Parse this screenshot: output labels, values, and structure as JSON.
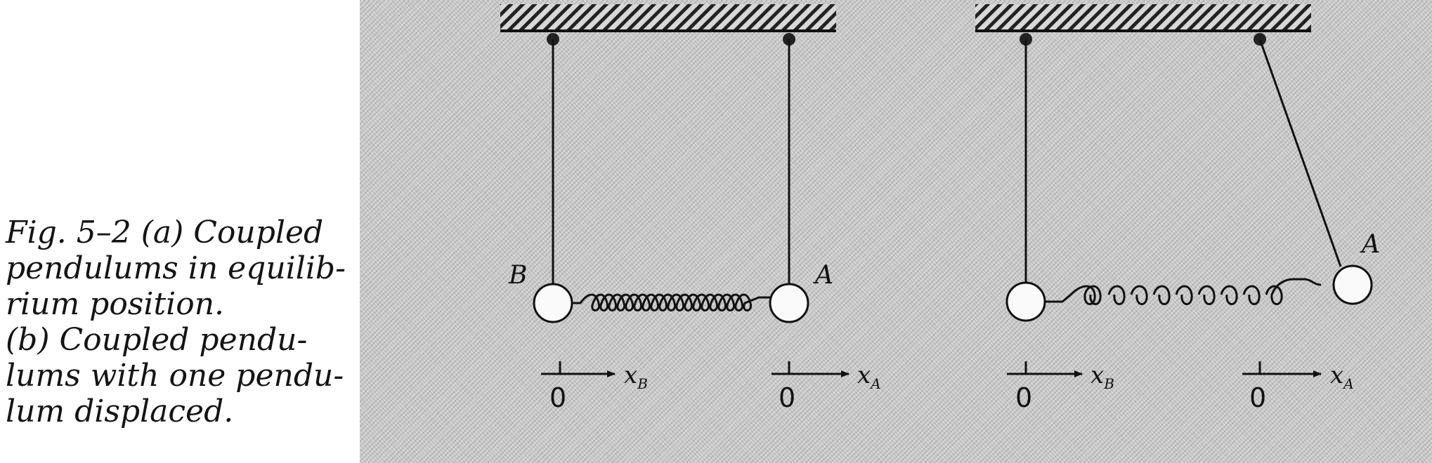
{
  "caption": {
    "lines": [
      "Fig. 5–2   (a) Coupled",
      "pendulums in equilib-",
      "rium position.",
      "(b) Coupled pendu-",
      "lums with one pendu-",
      "lum displaced."
    ]
  },
  "diagram_a": {
    "label_b": "B",
    "label_a": "A",
    "axis_b": {
      "origin": "0",
      "name": "x",
      "sub": "B"
    },
    "axis_a": {
      "origin": "0",
      "name": "x",
      "sub": "A"
    }
  },
  "diagram_b": {
    "label_a": "A",
    "axis_b": {
      "origin": "0",
      "name": "x",
      "sub": "B"
    },
    "axis_a": {
      "origin": "0",
      "name": "x",
      "sub": "A"
    }
  },
  "colors": {
    "ink": "#111111",
    "paper": "#c9c9c9"
  }
}
